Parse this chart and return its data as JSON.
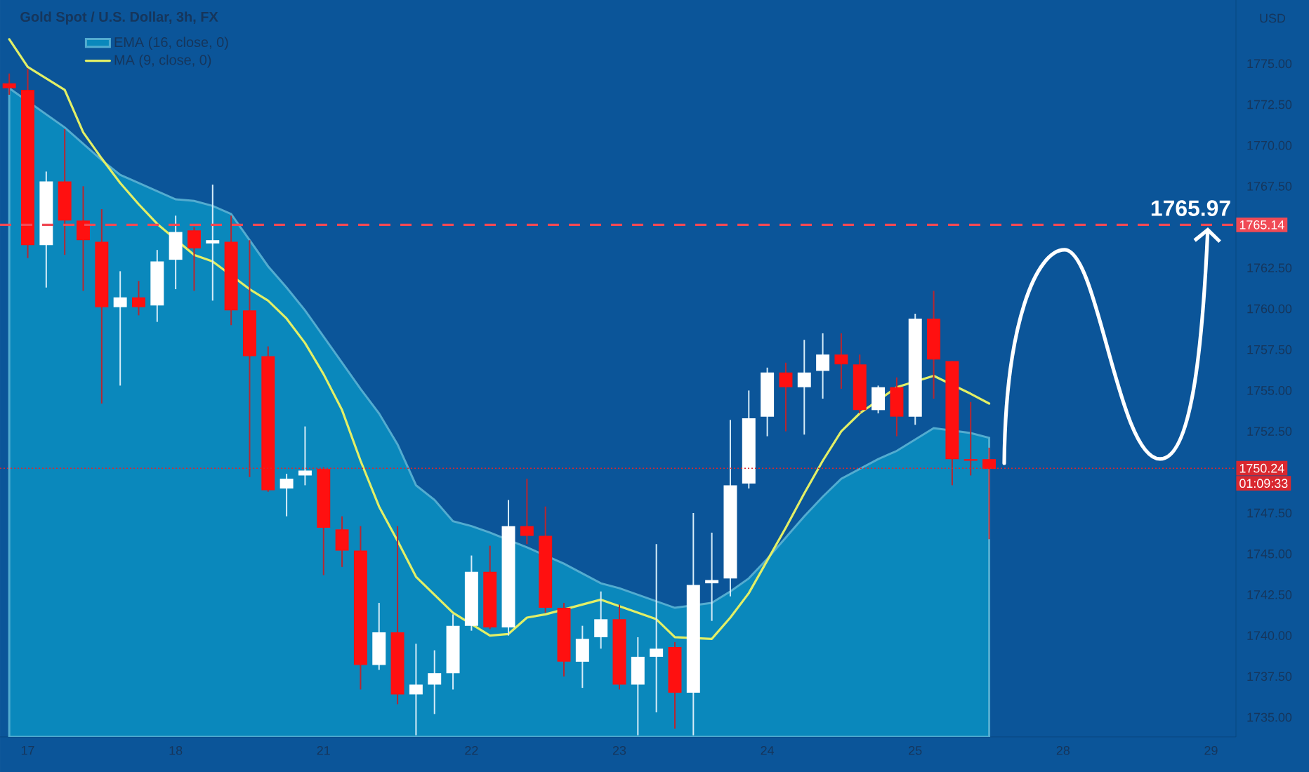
{
  "chart_data": {
    "type": "candlestick",
    "title": "Gold Spot / U.S. Dollar, 3h, FX",
    "ylabel": "USD",
    "categories": [
      null,
      "17",
      null,
      null,
      null,
      null,
      null,
      null,
      null,
      "18",
      null,
      null,
      null,
      null,
      null,
      null,
      null,
      "21",
      null,
      null,
      null,
      null,
      null,
      null,
      null,
      "22",
      null,
      null,
      null,
      null,
      null,
      null,
      null,
      "23",
      null,
      null,
      null,
      null,
      null,
      null,
      null,
      "24",
      null,
      null,
      null,
      null,
      null,
      null,
      null,
      "25",
      null,
      null,
      null,
      null,
      null,
      null,
      null,
      "28",
      null,
      null,
      null,
      null,
      null,
      null,
      null,
      "29",
      null
    ],
    "ohlc": [
      [
        1773.8,
        1774.4,
        1773.1,
        1773.5
      ],
      [
        1773.4,
        1774.7,
        1763.1,
        1763.9
      ],
      [
        1763.9,
        1768.4,
        1761.3,
        1767.8
      ],
      [
        1767.8,
        1771.0,
        1763.3,
        1765.4
      ],
      [
        1765.4,
        1767.5,
        1761.1,
        1764.2
      ],
      [
        1764.1,
        1766.1,
        1754.2,
        1760.1
      ],
      [
        1760.1,
        1762.3,
        1755.3,
        1760.7
      ],
      [
        1760.7,
        1761.7,
        1759.6,
        1760.1
      ],
      [
        1760.2,
        1763.6,
        1759.2,
        1762.9
      ],
      [
        1763.0,
        1765.7,
        1761.2,
        1764.7
      ],
      [
        1764.8,
        1765.0,
        1761.1,
        1763.7
      ],
      [
        1764.0,
        1767.6,
        1760.5,
        1764.2
      ],
      [
        1764.1,
        1765.7,
        1759.0,
        1759.9
      ],
      [
        1759.9,
        1764.2,
        1749.7,
        1757.1
      ],
      [
        1757.1,
        1757.7,
        1748.8,
        1748.9
      ],
      [
        1749.0,
        1749.9,
        1747.3,
        1749.6
      ],
      [
        1749.8,
        1752.8,
        1749.2,
        1750.1
      ],
      [
        1750.2,
        1750.3,
        1743.7,
        1746.6
      ],
      [
        1746.5,
        1747.3,
        1744.2,
        1745.2
      ],
      [
        1745.2,
        1746.7,
        1736.7,
        1738.2
      ],
      [
        1738.2,
        1742.0,
        1737.9,
        1740.2
      ],
      [
        1740.2,
        1746.7,
        1735.8,
        1736.4
      ],
      [
        1736.4,
        1739.5,
        1733.9,
        1737.0
      ],
      [
        1737.0,
        1739.1,
        1735.2,
        1737.7
      ],
      [
        1737.7,
        1741.3,
        1736.7,
        1740.6
      ],
      [
        1740.6,
        1744.9,
        1740.3,
        1743.9
      ],
      [
        1743.9,
        1745.5,
        1740.4,
        1740.5
      ],
      [
        1740.5,
        1748.3,
        1740.0,
        1746.7
      ],
      [
        1746.7,
        1749.6,
        1745.6,
        1746.1
      ],
      [
        1746.1,
        1747.9,
        1741.4,
        1741.7
      ],
      [
        1741.7,
        1742.0,
        1737.5,
        1738.4
      ],
      [
        1738.4,
        1740.6,
        1736.8,
        1739.8
      ],
      [
        1739.9,
        1742.7,
        1739.2,
        1741.0
      ],
      [
        1741.0,
        1741.9,
        1736.7,
        1737.0
      ],
      [
        1737.0,
        1739.9,
        1733.9,
        1738.7
      ],
      [
        1738.7,
        1745.6,
        1735.3,
        1739.2
      ],
      [
        1739.3,
        1739.6,
        1734.3,
        1736.5
      ],
      [
        1736.5,
        1747.5,
        1733.9,
        1743.1
      ],
      [
        1743.2,
        1746.3,
        1740.9,
        1743.4
      ],
      [
        1743.5,
        1753.2,
        1742.4,
        1749.2
      ],
      [
        1749.3,
        1755.0,
        1749.0,
        1753.3
      ],
      [
        1753.4,
        1756.4,
        1752.2,
        1756.1
      ],
      [
        1756.1,
        1756.7,
        1752.5,
        1755.2
      ],
      [
        1755.2,
        1758.1,
        1752.3,
        1756.1
      ],
      [
        1756.2,
        1758.5,
        1754.5,
        1757.2
      ],
      [
        1757.2,
        1758.5,
        1755.1,
        1756.6
      ],
      [
        1756.6,
        1757.2,
        1753.6,
        1753.8
      ],
      [
        1753.8,
        1755.3,
        1753.6,
        1755.2
      ],
      [
        1755.2,
        1755.8,
        1752.2,
        1753.4
      ],
      [
        1753.4,
        1759.7,
        1752.9,
        1759.4
      ],
      [
        1759.4,
        1761.1,
        1754.5,
        1756.9
      ],
      [
        1756.8,
        1756.8,
        1749.2,
        1750.8
      ],
      [
        1750.8,
        1754.3,
        1749.8,
        1750.7
      ],
      [
        1750.8,
        1751.5,
        1745.9,
        1750.2
      ],
      null,
      null,
      null,
      null,
      null,
      null,
      null,
      null,
      null,
      null,
      null,
      null,
      null
    ],
    "series": [
      {
        "name": "EMA (16, close, 0)",
        "type": "area",
        "color": "#0a88bc",
        "values": [
          1773.5,
          null,
          1771.9,
          1771.1,
          1770.1,
          1769.1,
          1768.2,
          1767.7,
          1767.2,
          1766.7,
          1766.6,
          1766.3,
          1765.8,
          1764.2,
          1762.6,
          1761.3,
          1759.9,
          1758.3,
          1756.7,
          1755.1,
          1753.6,
          1751.7,
          1749.2,
          1748.3,
          1747.0,
          1746.7,
          1746.3,
          null,
          1745.4,
          null,
          1744.4,
          1743.8,
          1743.2,
          1742.9,
          1742.5,
          1742.1,
          1741.7,
          null,
          1742.0,
          1742.7,
          1743.5,
          1744.7,
          1746.0,
          1747.3,
          1748.5,
          1749.6,
          1750.2,
          1750.8,
          1751.3,
          1752.0,
          1752.7,
          null,
          1752.4,
          1752.1,
          null,
          null,
          null,
          null,
          null,
          null,
          null,
          null,
          null,
          null,
          null,
          null,
          null
        ]
      },
      {
        "name": "MA (9, close, 0)",
        "type": "line",
        "color": "#e2ef66",
        "values": [
          1776.5,
          1774.8,
          1774.1,
          1773.4,
          1770.8,
          1769.2,
          1767.7,
          1766.4,
          1765.2,
          null,
          1763.3,
          1762.9,
          null,
          1761.2,
          1760.5,
          1759.4,
          1757.9,
          1756.0,
          1753.8,
          1750.7,
          1747.9,
          1745.8,
          1743.6,
          1742.5,
          1741.4,
          1740.7,
          1740.0,
          1740.1,
          1741.1,
          1741.3,
          null,
          1741.9,
          1742.2,
          1741.8,
          1741.4,
          1741.0,
          1739.9,
          null,
          1739.8,
          1741.1,
          1742.6,
          1744.6,
          1746.6,
          1748.7,
          1750.7,
          1752.5,
          1753.6,
          null,
          1755.2,
          null,
          1755.9,
          null,
          1754.8,
          1754.2,
          null,
          null,
          null,
          null,
          null,
          null,
          null,
          null,
          null,
          null,
          null,
          null,
          null
        ]
      }
    ],
    "ylim": [
      1733.8,
      1778.9
    ],
    "yticks": [
      {
        "value": 1735,
        "label": "1735.00"
      },
      {
        "value": 1737.5,
        "label": "1737.50"
      },
      {
        "value": 1740,
        "label": "1740.00"
      },
      {
        "value": 1742.5,
        "label": "1742.50"
      },
      {
        "value": 1745,
        "label": "1745.00"
      },
      {
        "value": 1747.5,
        "label": "1747.50"
      },
      {
        "value": 1752.5,
        "label": "1752.50"
      },
      {
        "value": 1755,
        "label": "1755.00"
      },
      {
        "value": 1757.5,
        "label": "1757.50"
      },
      {
        "value": 1760,
        "label": "1760.00"
      },
      {
        "value": 1762.5,
        "label": "1762.50"
      },
      {
        "value": 1767.5,
        "label": "1767.50"
      },
      {
        "value": 1770,
        "label": "1770.00"
      },
      {
        "value": 1772.5,
        "label": "1772.50"
      },
      {
        "value": 1775,
        "label": "1775.00"
      }
    ],
    "ref_lines": [
      {
        "axis": "y",
        "value": 1765.14,
        "label": "1765.14",
        "color": "#f04a55",
        "line_style": "dashed"
      },
      {
        "axis": "y",
        "value": 1750.24,
        "label": "1750.24",
        "color": "#d9282f",
        "line_style": "dotted"
      }
    ],
    "annotations": [
      {
        "text": "1765.97",
        "x": "29",
        "y": 1765.14
      },
      "01:09:33"
    ],
    "legend": "top left"
  }
}
